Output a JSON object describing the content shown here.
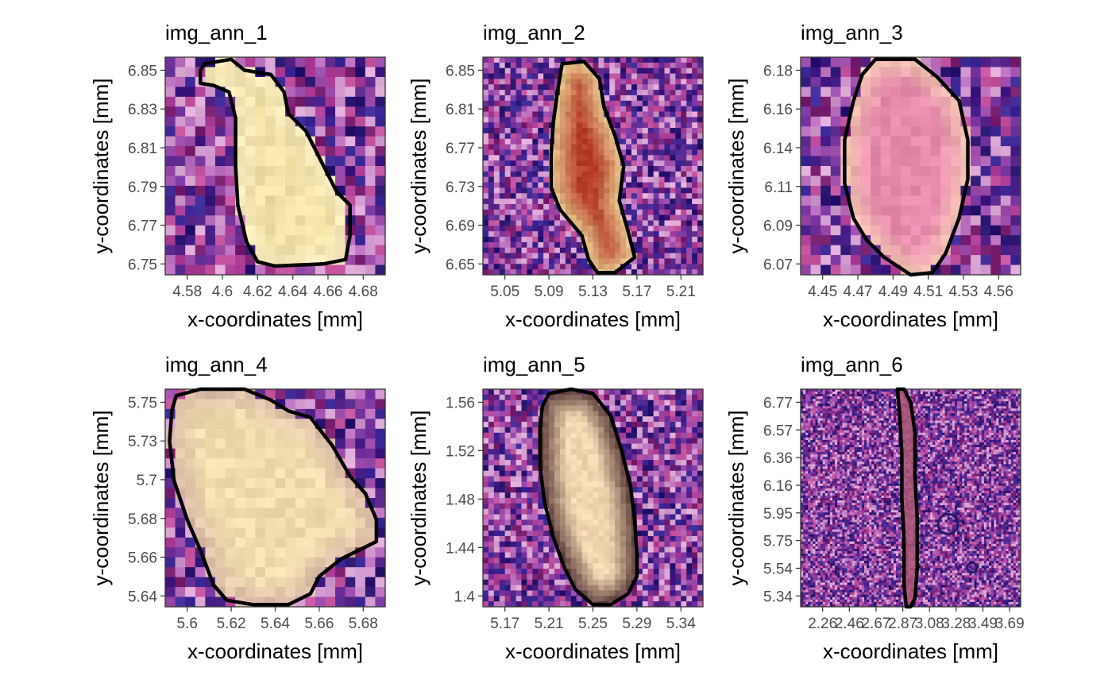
{
  "chart_data": [
    {
      "type": "heatmap",
      "title": "img_ann_1",
      "xlabel": "x-coordinates [mm]",
      "ylabel": "y-coordinates [mm]",
      "xticks": [
        "4.58",
        "4.6",
        "4.62",
        "4.64",
        "4.66",
        "4.68"
      ],
      "yticks": [
        "6.75",
        "6.77",
        "6.79",
        "6.81",
        "6.83",
        "6.85"
      ],
      "image": {
        "cols": 22,
        "rows": 22,
        "lesion_color": "#f1dfa5",
        "rim_color": "#f6e9bd",
        "seed": 11
      },
      "outline": [
        [
          0.18,
          0.03
        ],
        [
          0.3,
          0.01
        ],
        [
          0.36,
          0.06
        ],
        [
          0.48,
          0.08
        ],
        [
          0.54,
          0.16
        ],
        [
          0.56,
          0.26
        ],
        [
          0.64,
          0.34
        ],
        [
          0.72,
          0.5
        ],
        [
          0.78,
          0.62
        ],
        [
          0.84,
          0.68
        ],
        [
          0.84,
          0.82
        ],
        [
          0.82,
          0.93
        ],
        [
          0.72,
          0.95
        ],
        [
          0.5,
          0.96
        ],
        [
          0.42,
          0.94
        ],
        [
          0.37,
          0.85
        ],
        [
          0.33,
          0.68
        ],
        [
          0.32,
          0.5
        ],
        [
          0.32,
          0.28
        ],
        [
          0.29,
          0.16
        ],
        [
          0.22,
          0.13
        ],
        [
          0.16,
          0.12
        ],
        [
          0.16,
          0.06
        ]
      ]
    },
    {
      "type": "heatmap",
      "title": "img_ann_2",
      "xlabel": "x-coordinates [mm]",
      "ylabel": "y-coordinates [mm]",
      "xticks": [
        "5.05",
        "5.09",
        "5.13",
        "5.17",
        "5.21"
      ],
      "yticks": [
        "6.65",
        "6.69",
        "6.73",
        "6.77",
        "6.81",
        "6.85"
      ],
      "image": {
        "cols": 40,
        "rows": 40,
        "lesion_color": "#b8402a",
        "rim_color": "#e6c98f",
        "seed": 23
      },
      "outline": [
        [
          0.36,
          0.03
        ],
        [
          0.46,
          0.02
        ],
        [
          0.53,
          0.1
        ],
        [
          0.55,
          0.23
        ],
        [
          0.6,
          0.36
        ],
        [
          0.64,
          0.5
        ],
        [
          0.62,
          0.66
        ],
        [
          0.66,
          0.8
        ],
        [
          0.69,
          0.92
        ],
        [
          0.6,
          0.99
        ],
        [
          0.52,
          0.99
        ],
        [
          0.48,
          0.93
        ],
        [
          0.45,
          0.82
        ],
        [
          0.4,
          0.76
        ],
        [
          0.35,
          0.7
        ],
        [
          0.31,
          0.6
        ],
        [
          0.31,
          0.45
        ],
        [
          0.32,
          0.3
        ],
        [
          0.34,
          0.15
        ]
      ]
    },
    {
      "type": "heatmap",
      "title": "img_ann_3",
      "xlabel": "x-coordinates [mm]",
      "ylabel": "y-coordinates [mm]",
      "xticks": [
        "4.45",
        "4.47",
        "4.49",
        "4.51",
        "4.53",
        "4.56"
      ],
      "yticks": [
        "6.07",
        "6.09",
        "6.11",
        "6.14",
        "6.16",
        "6.18"
      ],
      "image": {
        "cols": 22,
        "rows": 22,
        "lesion_color": "#e88cae",
        "rim_color": "#f0c4b0",
        "seed": 37
      },
      "outline": [
        [
          0.34,
          0.01
        ],
        [
          0.52,
          0.01
        ],
        [
          0.62,
          0.09
        ],
        [
          0.72,
          0.2
        ],
        [
          0.76,
          0.38
        ],
        [
          0.76,
          0.56
        ],
        [
          0.72,
          0.74
        ],
        [
          0.66,
          0.9
        ],
        [
          0.6,
          0.99
        ],
        [
          0.5,
          1.0
        ],
        [
          0.38,
          0.92
        ],
        [
          0.3,
          0.84
        ],
        [
          0.24,
          0.74
        ],
        [
          0.2,
          0.58
        ],
        [
          0.2,
          0.38
        ],
        [
          0.24,
          0.2
        ],
        [
          0.28,
          0.08
        ]
      ]
    },
    {
      "type": "heatmap",
      "title": "img_ann_4",
      "xlabel": "x-coordinates [mm]",
      "ylabel": "y-coordinates [mm]",
      "xticks": [
        "5.6",
        "5.62",
        "5.64",
        "5.66",
        "5.68"
      ],
      "yticks": [
        "5.64",
        "5.66",
        "5.68",
        "5.7",
        "5.73",
        "5.75"
      ],
      "image": {
        "cols": 22,
        "rows": 22,
        "lesion_color": "#f0dcae",
        "rim_color": "#d9b9a8",
        "seed": 41
      },
      "outline": [
        [
          0.05,
          0.03
        ],
        [
          0.16,
          0.0
        ],
        [
          0.36,
          0.0
        ],
        [
          0.48,
          0.05
        ],
        [
          0.56,
          0.1
        ],
        [
          0.66,
          0.13
        ],
        [
          0.76,
          0.26
        ],
        [
          0.84,
          0.4
        ],
        [
          0.91,
          0.48
        ],
        [
          0.96,
          0.6
        ],
        [
          0.96,
          0.7
        ],
        [
          0.88,
          0.74
        ],
        [
          0.8,
          0.78
        ],
        [
          0.7,
          0.86
        ],
        [
          0.66,
          0.94
        ],
        [
          0.56,
          0.99
        ],
        [
          0.4,
          0.99
        ],
        [
          0.28,
          0.97
        ],
        [
          0.22,
          0.9
        ],
        [
          0.16,
          0.74
        ],
        [
          0.1,
          0.6
        ],
        [
          0.04,
          0.42
        ],
        [
          0.02,
          0.24
        ],
        [
          0.03,
          0.1
        ]
      ]
    },
    {
      "type": "heatmap",
      "title": "img_ann_5",
      "xlabel": "x-coordinates [mm]",
      "ylabel": "y-coordinates [mm]",
      "xticks": [
        "5.17",
        "5.21",
        "5.25",
        "5.29",
        "5.34"
      ],
      "yticks": [
        "1.4",
        "1.44",
        "1.48",
        "1.52",
        "1.56"
      ],
      "image": {
        "cols": 40,
        "rows": 40,
        "lesion_color": "#f1d7b0",
        "rim_color": "#5a3a3a",
        "seed": 53
      },
      "outline": [
        [
          0.3,
          0.02
        ],
        [
          0.4,
          0.0
        ],
        [
          0.5,
          0.02
        ],
        [
          0.58,
          0.12
        ],
        [
          0.63,
          0.28
        ],
        [
          0.67,
          0.44
        ],
        [
          0.69,
          0.6
        ],
        [
          0.7,
          0.76
        ],
        [
          0.7,
          0.86
        ],
        [
          0.66,
          0.94
        ],
        [
          0.58,
          0.99
        ],
        [
          0.5,
          0.99
        ],
        [
          0.42,
          0.92
        ],
        [
          0.37,
          0.82
        ],
        [
          0.32,
          0.68
        ],
        [
          0.28,
          0.52
        ],
        [
          0.26,
          0.36
        ],
        [
          0.26,
          0.18
        ],
        [
          0.27,
          0.08
        ]
      ]
    },
    {
      "type": "heatmap",
      "title": "img_ann_6",
      "xlabel": "x-coordinates [mm]",
      "ylabel": "y-coordinates [mm]",
      "xticks": [
        "2.26",
        "2.46",
        "2.67",
        "2.87",
        "3.08",
        "3.28",
        "3.49",
        "3.69"
      ],
      "yticks": [
        "5.34",
        "5.54",
        "5.75",
        "5.95",
        "6.16",
        "6.36",
        "6.57",
        "6.77"
      ],
      "image": {
        "cols": 90,
        "rows": 90,
        "lesion_color": "#c46a80",
        "rim_color": "#a0507a",
        "seed": 67
      },
      "outline": [
        [
          0.44,
          0.0
        ],
        [
          0.47,
          0.0
        ],
        [
          0.5,
          0.06
        ],
        [
          0.52,
          0.2
        ],
        [
          0.52,
          0.4
        ],
        [
          0.53,
          0.6
        ],
        [
          0.53,
          0.82
        ],
        [
          0.52,
          0.96
        ],
        [
          0.5,
          1.0
        ],
        [
          0.48,
          1.0
        ],
        [
          0.47,
          0.9
        ],
        [
          0.47,
          0.7
        ],
        [
          0.46,
          0.5
        ],
        [
          0.46,
          0.3
        ],
        [
          0.45,
          0.12
        ]
      ],
      "rings": [
        {
          "cx": 0.67,
          "cy": 0.62,
          "r": 0.045
        },
        {
          "cx": 0.78,
          "cy": 0.82,
          "r": 0.022
        }
      ]
    }
  ]
}
